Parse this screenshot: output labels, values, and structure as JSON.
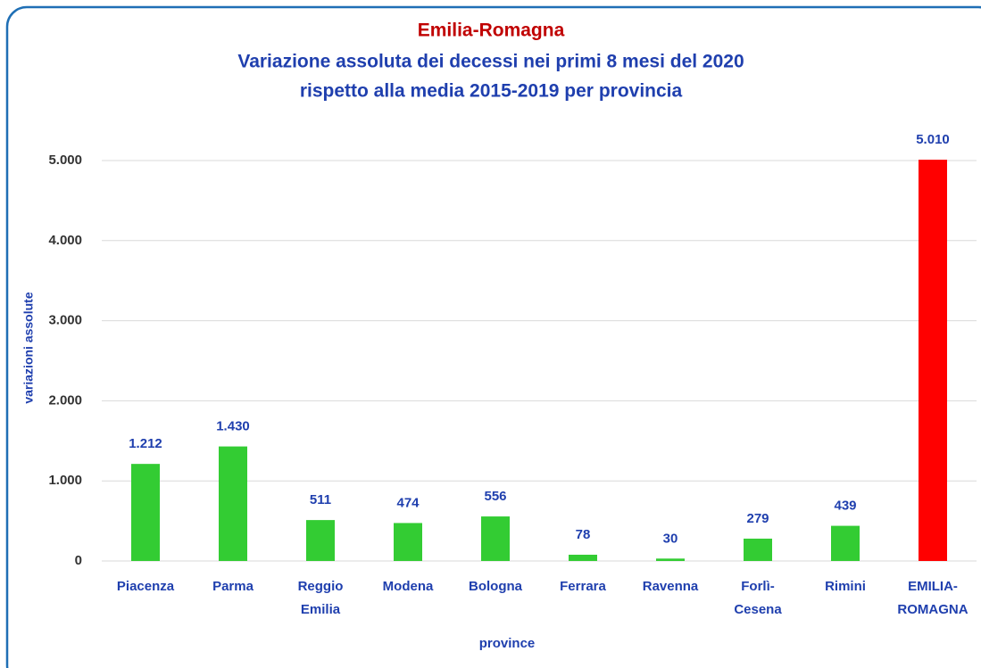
{
  "chart_data": {
    "type": "bar",
    "title": "Emilia-Romagna",
    "subtitle": [
      "Variazione assoluta dei decessi nei primi 8 mesi del 2020",
      "rispetto alla media 2015-2019 per provincia"
    ],
    "x_label": "province",
    "y_label": "variazioni  assolute",
    "categories": [
      [
        "Piacenza"
      ],
      [
        "Parma"
      ],
      [
        "Reggio",
        "Emilia"
      ],
      [
        "Modena"
      ],
      [
        "Bologna"
      ],
      [
        "Ferrara"
      ],
      [
        "Ravenna"
      ],
      [
        "Forlì-",
        "Cesena"
      ],
      [
        "Rimini"
      ],
      [
        "EMILIA-",
        "ROMAGNA"
      ]
    ],
    "values": [
      1212,
      1430,
      511,
      474,
      556,
      78,
      30,
      279,
      439,
      5010
    ],
    "value_labels": [
      "1.212",
      "1.430",
      "511",
      "474",
      "556",
      "78",
      "30",
      "279",
      "439",
      "5.010"
    ],
    "colors": [
      "#33cc33",
      "#33cc33",
      "#33cc33",
      "#33cc33",
      "#33cc33",
      "#33cc33",
      "#33cc33",
      "#33cc33",
      "#33cc33",
      "#ff0000"
    ],
    "ylim": [
      0,
      5000
    ],
    "yticks": [
      0,
      {
        "value": 1000,
        "label": "1.000"
      },
      {
        "value": 2000,
        "label": "2.000"
      },
      {
        "value": 3000,
        "label": "3.000"
      },
      {
        "value": 4000,
        "label": "4.000"
      },
      {
        "value": 5000,
        "label": "5.000"
      }
    ],
    "grid": true
  }
}
